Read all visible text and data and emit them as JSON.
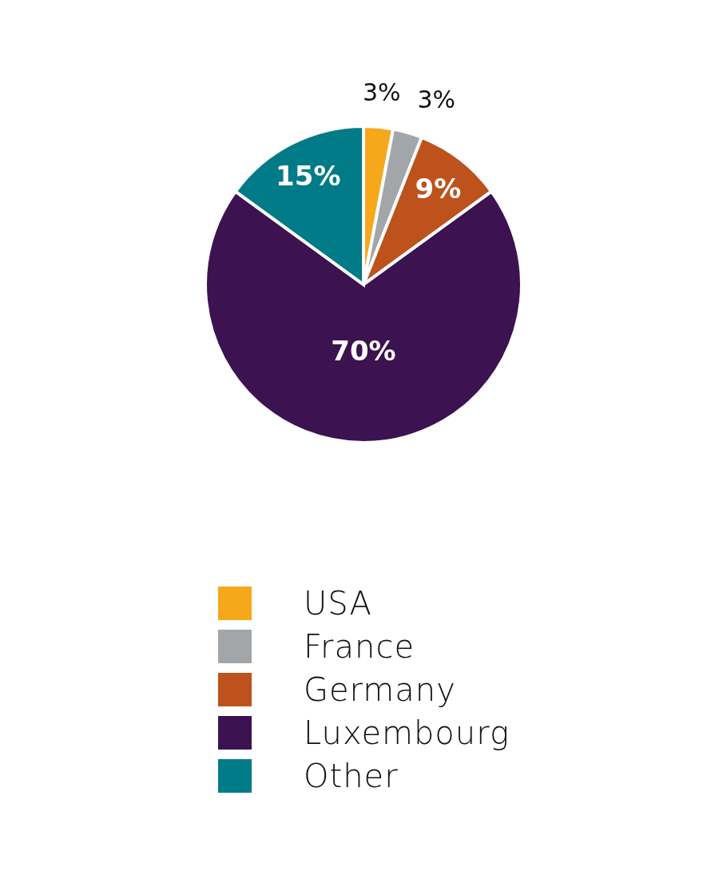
{
  "chart_data": {
    "type": "pie",
    "categories": [
      "USA",
      "France",
      "Germany",
      "Luxembourg",
      "Other"
    ],
    "values": [
      3,
      3,
      9,
      70,
      15
    ],
    "colors": [
      "#f6a81b",
      "#a2a6a8",
      "#bd521c",
      "#3c1250",
      "#007b87"
    ],
    "value_labels": [
      "3%",
      "3%",
      "9%",
      "70%",
      "15%"
    ],
    "legend": "bottom"
  }
}
